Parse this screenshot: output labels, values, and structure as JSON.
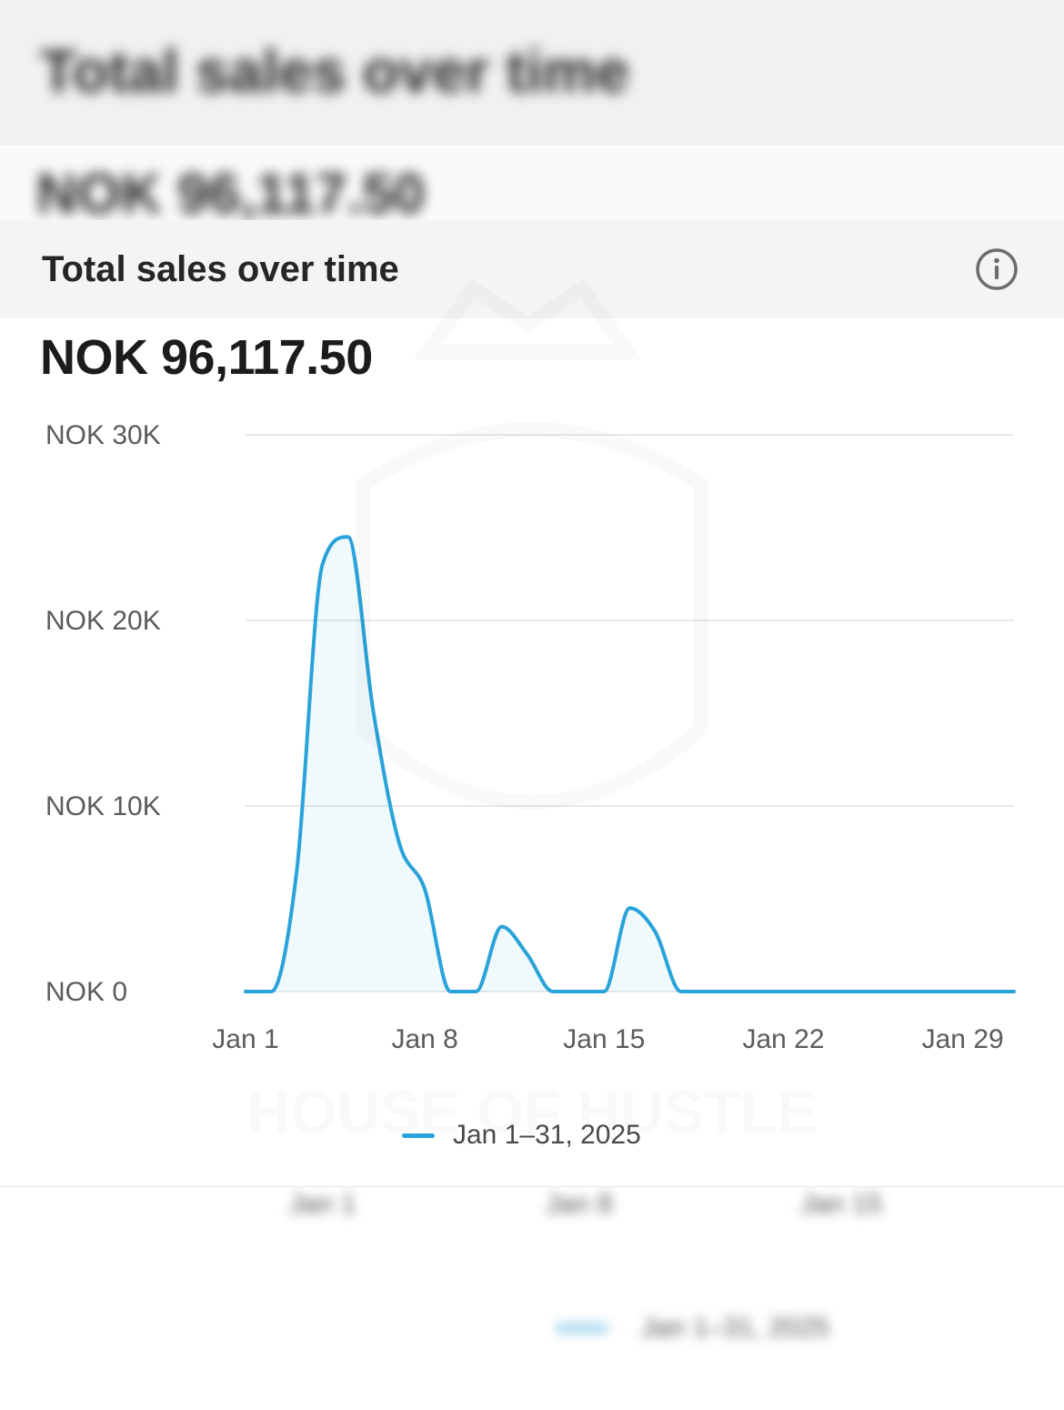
{
  "card": {
    "title": "Total sales over time",
    "total": "NOK 96,117.50"
  },
  "icons": {
    "info": "info-circle-icon"
  },
  "colors": {
    "series": "#29a3da",
    "grid": "#e9e9e9",
    "header_bg": "#f4f4f4"
  },
  "background_blur": {
    "title": "Total sales over time",
    "total": "NOK 96,117.50",
    "x_ticks": [
      "Jan 1",
      "Jan 8",
      "Jan 15"
    ],
    "legend": "Jan 1–31, 2025"
  },
  "watermark": {
    "text": "HOUSE OF HUSTLE"
  },
  "chart_data": {
    "type": "line",
    "title": "Total sales over time",
    "xlabel": "",
    "ylabel": "",
    "x": [
      "Jan 1",
      "Jan 2",
      "Jan 3",
      "Jan 4",
      "Jan 5",
      "Jan 6",
      "Jan 7",
      "Jan 8",
      "Jan 9",
      "Jan 10",
      "Jan 11",
      "Jan 12",
      "Jan 13",
      "Jan 14",
      "Jan 15",
      "Jan 16",
      "Jan 17",
      "Jan 18",
      "Jan 19",
      "Jan 20",
      "Jan 21",
      "Jan 22",
      "Jan 23",
      "Jan 24",
      "Jan 25",
      "Jan 26",
      "Jan 27",
      "Jan 28",
      "Jan 29",
      "Jan 30",
      "Jan 31"
    ],
    "x_ticks": [
      "Jan 1",
      "Jan 8",
      "Jan 15",
      "Jan 22",
      "Jan 29"
    ],
    "y_ticks": [
      "NOK 0",
      "NOK 10K",
      "NOK 20K",
      "NOK 30K"
    ],
    "ylim": [
      0,
      30000
    ],
    "series": [
      {
        "name": "Jan 1–31, 2025",
        "color": "#29a3da",
        "values": [
          0,
          0,
          6500,
          23000,
          24500,
          15000,
          8000,
          5500,
          0,
          0,
          3500,
          2000,
          0,
          0,
          0,
          4500,
          3200,
          0,
          0,
          0,
          0,
          0,
          0,
          0,
          0,
          0,
          0,
          0,
          0,
          0,
          0
        ]
      }
    ],
    "grid": true,
    "fill_under_line": true,
    "legend_position": "bottom"
  }
}
